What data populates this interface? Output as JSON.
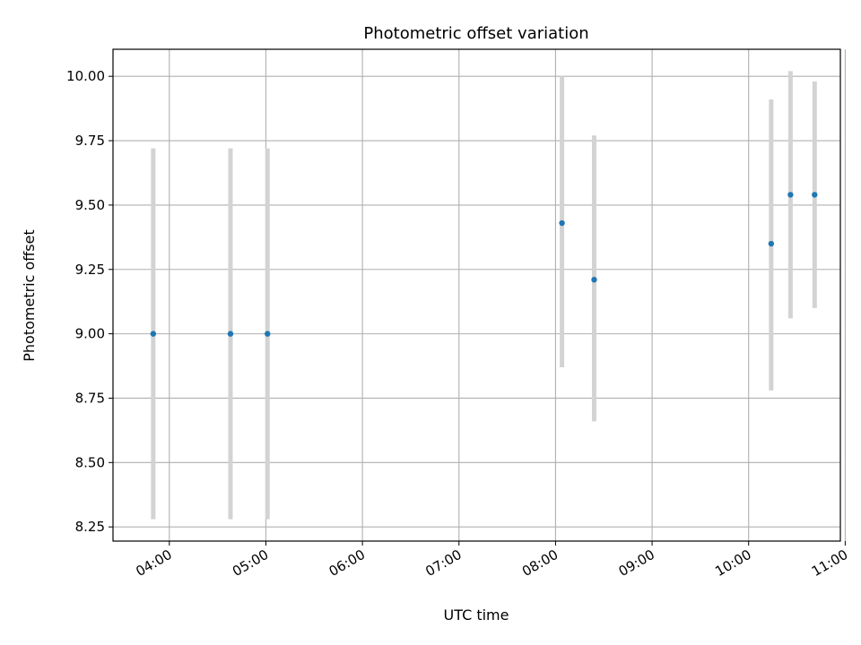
{
  "chart_data": {
    "type": "scatter",
    "title": "Photometric offset variation",
    "xlabel": "UTC time",
    "ylabel": "Photometric offset",
    "x_is_time": true,
    "x_ticks": [
      "04:00",
      "05:00",
      "06:00",
      "07:00",
      "08:00",
      "09:00",
      "10:00",
      "11:00"
    ],
    "xlim": [
      "03:25",
      "10:57"
    ],
    "y_ticks": [
      "8.25",
      "8.50",
      "8.75",
      "9.00",
      "9.25",
      "9.50",
      "9.75",
      "10.00"
    ],
    "ylim": [
      8.195,
      10.105
    ],
    "grid": true,
    "colors": {
      "point": "#1f77b4",
      "errorbar": "#d3d3d3",
      "grid": "#b0b0b0"
    },
    "points": [
      {
        "x": "03:50",
        "y": 9.0,
        "yerr_low": 8.28,
        "yerr_high": 9.72
      },
      {
        "x": "04:38",
        "y": 9.0,
        "yerr_low": 8.28,
        "yerr_high": 9.72
      },
      {
        "x": "05:01",
        "y": 9.0,
        "yerr_low": 8.28,
        "yerr_high": 9.72
      },
      {
        "x": "08:04",
        "y": 9.43,
        "yerr_low": 8.87,
        "yerr_high": 10.0
      },
      {
        "x": "08:24",
        "y": 9.21,
        "yerr_low": 8.66,
        "yerr_high": 9.77
      },
      {
        "x": "10:14",
        "y": 9.35,
        "yerr_low": 8.78,
        "yerr_high": 9.91
      },
      {
        "x": "10:26",
        "y": 9.54,
        "yerr_low": 9.06,
        "yerr_high": 10.02
      },
      {
        "x": "10:41",
        "y": 9.54,
        "yerr_low": 9.1,
        "yerr_high": 9.98
      }
    ]
  }
}
